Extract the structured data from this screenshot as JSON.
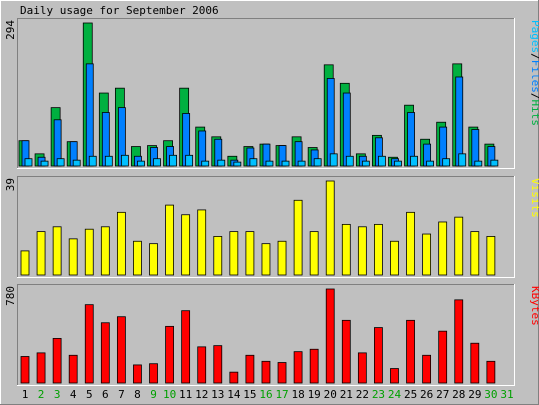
{
  "chart_data": {
    "type": "bar",
    "title": "Daily usage for September 2006",
    "days": [
      "1",
      "2",
      "3",
      "4",
      "5",
      "6",
      "7",
      "8",
      "9",
      "10",
      "11",
      "12",
      "13",
      "14",
      "15",
      "16",
      "17",
      "18",
      "19",
      "20",
      "21",
      "22",
      "23",
      "24",
      "25",
      "26",
      "27",
      "28",
      "29",
      "30",
      "31"
    ],
    "weekend_days": [
      "2",
      "3",
      "9",
      "10",
      "16",
      "17",
      "23",
      "24",
      "30",
      "31"
    ],
    "colors": {
      "hits": "#00b040",
      "files": "#0080ff",
      "pages": "#00c0ff",
      "visits": "#ffff00",
      "kbytes": "#ff0000",
      "panel_bg": "#c0c0c0",
      "weekday_label": "#000000",
      "weekend_label": "#00a000"
    },
    "panels": [
      {
        "id": "usage",
        "max_label": "294",
        "ymax": 294,
        "legend": [
          "Pages",
          "/",
          "Files",
          "/",
          "Hits"
        ],
        "legend_colors": [
          "#00c0ff",
          "#000000",
          "#0080ff",
          "#000000",
          "#00b040"
        ],
        "series": [
          {
            "key": "hits",
            "values": [
              52,
              25,
              120,
              50,
              294,
              150,
              160,
              40,
              42,
              52,
              160,
              80,
              60,
              20,
              40,
              45,
              42,
              60,
              38,
              208,
              170,
              25,
              63,
              18,
              125,
              55,
              90,
              210,
              80,
              45,
              0
            ]
          },
          {
            "key": "files",
            "values": [
              52,
              18,
              95,
              50,
              210,
              110,
              120,
              20,
              38,
              40,
              108,
              72,
              55,
              12,
              37,
              45,
              42,
              50,
              33,
              180,
              150,
              20,
              58,
              15,
              110,
              45,
              80,
              183,
              75,
              40,
              0
            ]
          },
          {
            "key": "pages",
            "values": [
              15,
              10,
              15,
              12,
              20,
              20,
              22,
              10,
              15,
              22,
              22,
              10,
              12,
              8,
              15,
              10,
              10,
              10,
              15,
              25,
              20,
              10,
              20,
              10,
              20,
              10,
              15,
              25,
              10,
              12,
              0
            ]
          }
        ]
      },
      {
        "id": "visits",
        "max_label": "39",
        "ymax": 39,
        "legend": [
          "Visits"
        ],
        "legend_colors": [
          "#ffff00"
        ],
        "series": [
          {
            "key": "visits",
            "values": [
              10,
              18,
              20,
              15,
              19,
              20,
              26,
              14,
              13,
              29,
              25,
              27,
              16,
              18,
              18,
              13,
              14,
              31,
              18,
              39,
              21,
              20,
              21,
              14,
              26,
              17,
              22,
              24,
              18,
              16,
              0
            ]
          }
        ]
      },
      {
        "id": "kbytes",
        "max_label": "780",
        "ymax": 780,
        "legend": [
          "KBytes"
        ],
        "legend_colors": [
          "#ff0000"
        ],
        "series": [
          {
            "key": "kbytes",
            "values": [
              220,
              250,
              370,
              230,
              650,
              500,
              550,
              150,
              160,
              470,
              600,
              300,
              310,
              90,
              230,
              180,
              170,
              260,
              280,
              780,
              520,
              250,
              460,
              120,
              520,
              230,
              430,
              690,
              330,
              180,
              0
            ]
          }
        ]
      }
    ]
  }
}
